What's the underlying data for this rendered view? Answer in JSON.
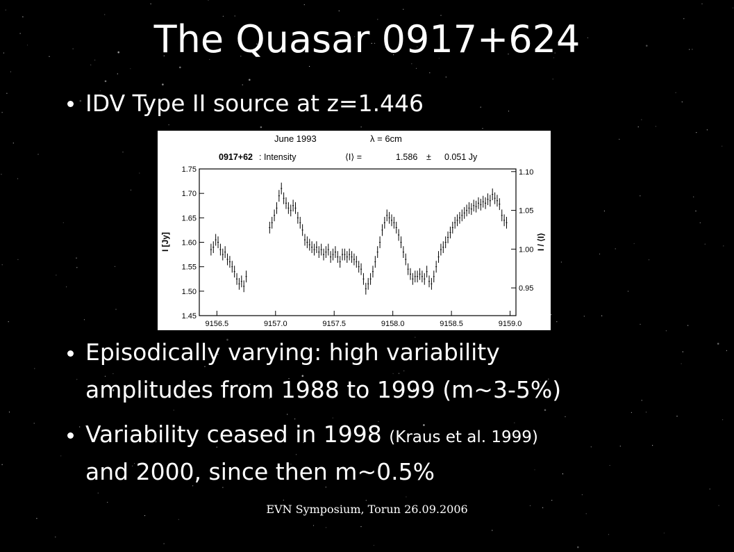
{
  "slide": {
    "title": "The Quasar 0917+624",
    "bullets": [
      {
        "lines": [
          {
            "text": "IDV Type II source at z=1.446"
          }
        ]
      },
      {
        "lines": [
          {
            "text": "Episodically varying: high variability"
          },
          {
            "text": "amplitudes from 1988 to 1999  (m~3-5%)"
          }
        ]
      },
      {
        "lines": [
          {
            "text": "Variability ceased in  1998",
            "small": "(Kraus et al. 1999)"
          },
          {
            "text": "and 2000, since then m~0.5%"
          }
        ]
      }
    ],
    "footer": "EVN Symposium, Torun 26.09.2006"
  },
  "figure": {
    "header_left": "June 1993",
    "header_right": "λ = 6cm",
    "source": "0917+62",
    "source_suffix": ": Intensity",
    "mean_label": "⟨I⟩ =",
    "mean_value": "1.586",
    "pm": "±",
    "error_value": "0.051 Jy",
    "ylabel_left": "I [Jy]",
    "ylabel_right": "I / ⟨I⟩",
    "left_ticks": [
      "1.75",
      "1.70",
      "1.65",
      "1.60",
      "1.55",
      "1.50",
      "1.45"
    ],
    "right_ticks": [
      "1.10",
      "1.05",
      "1.00",
      "0.95"
    ],
    "x_ticks": [
      "9156.5",
      "9157.0",
      "9157.5",
      "9158.0",
      "9158.5",
      "9159.0"
    ]
  },
  "chart_data": {
    "type": "scatter",
    "xlim": [
      9156.35,
      9159.05
    ],
    "ylim": [
      1.45,
      1.75
    ],
    "x": [
      9156.45,
      9156.47,
      9156.49,
      9156.51,
      9156.53,
      9156.55,
      9156.57,
      9156.59,
      9156.61,
      9156.63,
      9156.65,
      9156.67,
      9156.69,
      9156.71,
      9156.73,
      9156.75,
      9156.95,
      9156.97,
      9156.99,
      9157.01,
      9157.03,
      9157.05,
      9157.07,
      9157.09,
      9157.11,
      9157.13,
      9157.15,
      9157.17,
      9157.19,
      9157.21,
      9157.23,
      9157.25,
      9157.27,
      9157.29,
      9157.31,
      9157.33,
      9157.35,
      9157.37,
      9157.39,
      9157.41,
      9157.43,
      9157.45,
      9157.47,
      9157.49,
      9157.51,
      9157.53,
      9157.55,
      9157.57,
      9157.59,
      9157.61,
      9157.63,
      9157.65,
      9157.67,
      9157.69,
      9157.71,
      9157.73,
      9157.75,
      9157.77,
      9157.79,
      9157.81,
      9157.83,
      9157.85,
      9157.87,
      9157.89,
      9157.91,
      9157.93,
      9157.95,
      9157.97,
      9157.99,
      9158.01,
      9158.03,
      9158.05,
      9158.07,
      9158.09,
      9158.11,
      9158.13,
      9158.15,
      9158.17,
      9158.19,
      9158.21,
      9158.23,
      9158.25,
      9158.27,
      9158.29,
      9158.31,
      9158.33,
      9158.35,
      9158.37,
      9158.39,
      9158.41,
      9158.43,
      9158.45,
      9158.47,
      9158.49,
      9158.51,
      9158.53,
      9158.55,
      9158.57,
      9158.59,
      9158.61,
      9158.63,
      9158.65,
      9158.67,
      9158.69,
      9158.71,
      9158.73,
      9158.75,
      9158.77,
      9158.79,
      9158.81,
      9158.83,
      9158.85,
      9158.87,
      9158.89,
      9158.91,
      9158.93,
      9158.95,
      9158.97
    ],
    "y": [
      1.585,
      1.59,
      1.605,
      1.6,
      1.585,
      1.575,
      1.58,
      1.565,
      1.56,
      1.55,
      1.54,
      1.525,
      1.515,
      1.52,
      1.51,
      1.53,
      1.63,
      1.64,
      1.655,
      1.67,
      1.695,
      1.71,
      1.69,
      1.68,
      1.67,
      1.665,
      1.675,
      1.67,
      1.65,
      1.64,
      1.625,
      1.605,
      1.6,
      1.595,
      1.59,
      1.585,
      1.59,
      1.58,
      1.585,
      1.575,
      1.58,
      1.585,
      1.57,
      1.575,
      1.58,
      1.57,
      1.56,
      1.575,
      1.575,
      1.57,
      1.575,
      1.57,
      1.565,
      1.56,
      1.55,
      1.545,
      1.525,
      1.505,
      1.515,
      1.525,
      1.54,
      1.56,
      1.58,
      1.6,
      1.625,
      1.64,
      1.655,
      1.65,
      1.645,
      1.64,
      1.63,
      1.615,
      1.6,
      1.58,
      1.565,
      1.545,
      1.535,
      1.525,
      1.53,
      1.53,
      1.535,
      1.53,
      1.525,
      1.54,
      1.52,
      1.515,
      1.53,
      1.55,
      1.57,
      1.585,
      1.59,
      1.6,
      1.61,
      1.62,
      1.63,
      1.64,
      1.645,
      1.65,
      1.655,
      1.66,
      1.665,
      1.67,
      1.668,
      1.675,
      1.673,
      1.68,
      1.677,
      1.683,
      1.68,
      1.688,
      1.685,
      1.698,
      1.69,
      1.685,
      1.678,
      1.655,
      1.645,
      1.64
    ],
    "yerr": 0.012,
    "xerr": 0.006
  },
  "colors": {
    "background": "#000000",
    "text": "#ffffff",
    "plot_background": "#ffffff",
    "plot_ink": "#000000"
  }
}
